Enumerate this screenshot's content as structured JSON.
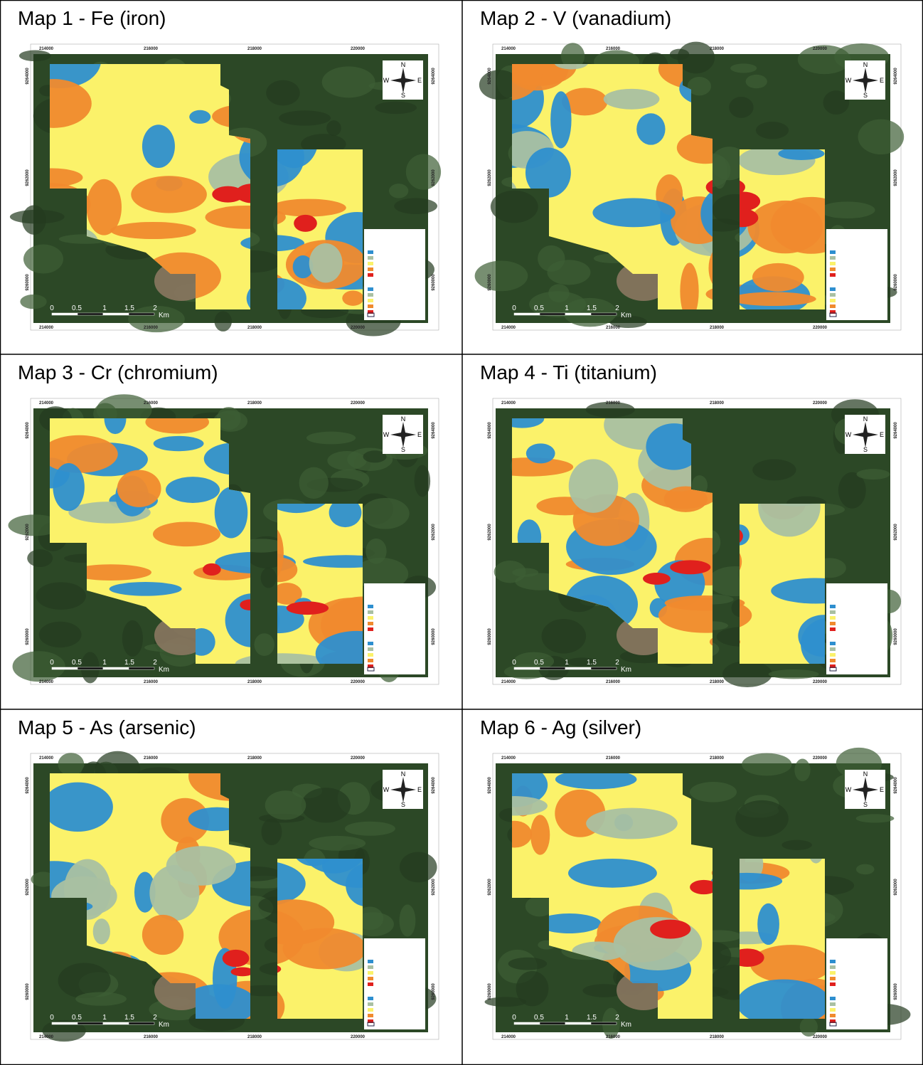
{
  "maps": [
    {
      "title": "Map 1 - Fe (iron)"
    },
    {
      "title": "Map 2 - V (vanadium)"
    },
    {
      "title": "Map 3 - Cr (chromium)"
    },
    {
      "title": "Map 4 - Ti (titanium)"
    },
    {
      "title": "Map 5 - As (arsenic)"
    },
    {
      "title": "Map 6 - Ag (silver)"
    }
  ],
  "map_frame": {
    "x_labels": [
      "214000",
      "216000",
      "218000",
      "220000"
    ],
    "y_labels": [
      "9264000",
      "9262000",
      "9260000"
    ],
    "scale_labels": [
      "0",
      "0.5",
      "1",
      "1.5",
      "2"
    ],
    "scale_unit": "Km",
    "compass": [
      "N",
      "W",
      "E",
      "S"
    ]
  }
}
